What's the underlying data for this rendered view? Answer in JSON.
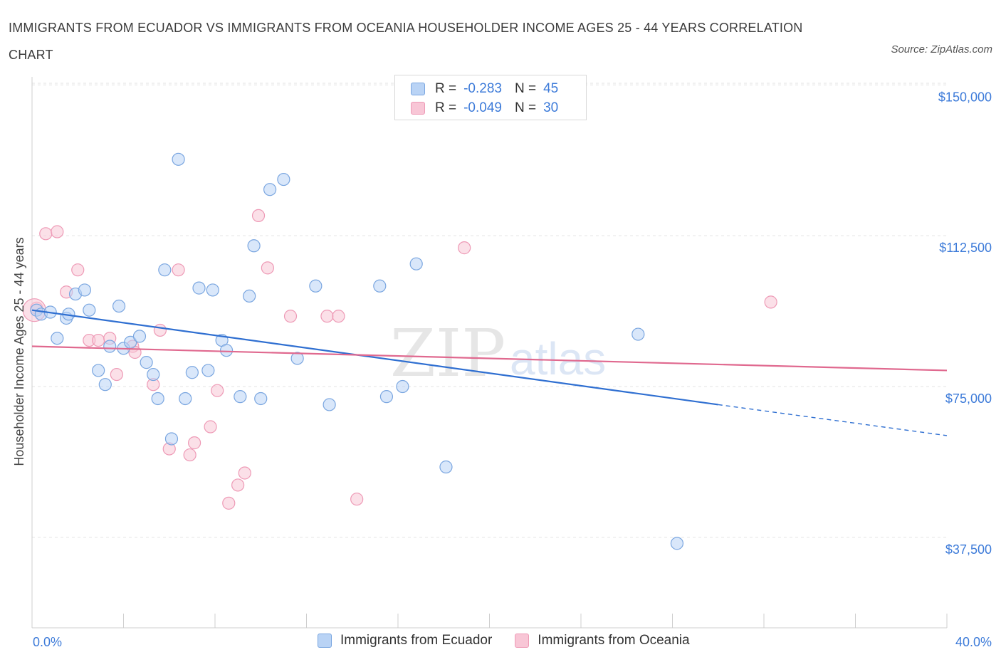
{
  "title": "IMMIGRANTS FROM ECUADOR VS IMMIGRANTS FROM OCEANIA HOUSEHOLDER INCOME AGES 25 - 44 YEARS CORRELATION CHART",
  "source": "Source: ZipAtlas.com",
  "watermark": {
    "zip": "ZIP",
    "atlas": "atlas"
  },
  "legend": {
    "ecuador": {
      "r_label": "R =",
      "r_value": "-0.283",
      "n_label": "N =",
      "n_value": "45"
    },
    "oceania": {
      "r_label": "R =",
      "r_value": "-0.049",
      "n_label": "N =",
      "n_value": "30"
    }
  },
  "bottom_legend": {
    "ecuador": "Immigrants from Ecuador",
    "oceania": "Immigrants from Oceania"
  },
  "colors": {
    "ecuador_fill": "#b9d3f5",
    "ecuador_stroke": "#7aa6e0",
    "ecuador_line": "#2f6fd1",
    "oceania_fill": "#f8c6d6",
    "oceania_stroke": "#ee9ab6",
    "oceania_line": "#e0698f",
    "accent_text": "#3d7bd9",
    "grid": "#e3e3e3"
  },
  "chart_data": {
    "type": "scatter",
    "title": "IMMIGRANTS FROM ECUADOR VS IMMIGRANTS FROM OCEANIA HOUSEHOLDER INCOME AGES 25 - 44 YEARS CORRELATION CHART",
    "xlabel": "",
    "ylabel": "Householder Income Ages 25 - 44 years",
    "xlim": [
      0,
      40
    ],
    "ylim": [
      15000,
      152000
    ],
    "x_tick_labels": [
      "0.0%",
      "40.0%"
    ],
    "y_ticks": [
      37500,
      75000,
      112500,
      150000
    ],
    "y_tick_labels": [
      "$37,500",
      "$75,000",
      "$112,500",
      "$150,000"
    ],
    "grid": true,
    "legend_position": "top-center",
    "series": [
      {
        "name": "Immigrants from Ecuador",
        "points": [
          [
            0.2,
            94000
          ],
          [
            0.4,
            93000
          ],
          [
            0.8,
            93500
          ],
          [
            1.1,
            87000
          ],
          [
            1.5,
            92000
          ],
          [
            1.6,
            93000
          ],
          [
            1.9,
            98000
          ],
          [
            2.3,
            99000
          ],
          [
            2.5,
            94000
          ],
          [
            2.9,
            79000
          ],
          [
            3.2,
            75500
          ],
          [
            3.4,
            85000
          ],
          [
            3.8,
            95000
          ],
          [
            4.0,
            84500
          ],
          [
            4.3,
            86000
          ],
          [
            4.7,
            87500
          ],
          [
            5.0,
            81000
          ],
          [
            5.3,
            78000
          ],
          [
            5.5,
            72000
          ],
          [
            5.8,
            104000
          ],
          [
            6.1,
            62000
          ],
          [
            6.4,
            131500
          ],
          [
            6.7,
            72000
          ],
          [
            7.0,
            78500
          ],
          [
            7.3,
            99500
          ],
          [
            7.7,
            79000
          ],
          [
            7.9,
            99000
          ],
          [
            8.3,
            86500
          ],
          [
            8.5,
            84000
          ],
          [
            9.1,
            72500
          ],
          [
            9.5,
            97500
          ],
          [
            9.7,
            110000
          ],
          [
            10.0,
            72000
          ],
          [
            10.4,
            124000
          ],
          [
            11.0,
            126500
          ],
          [
            11.6,
            82000
          ],
          [
            12.4,
            100000
          ],
          [
            13.0,
            70500
          ],
          [
            15.2,
            100000
          ],
          [
            15.5,
            72500
          ],
          [
            16.2,
            75000
          ],
          [
            16.8,
            105500
          ],
          [
            18.1,
            55000
          ],
          [
            26.5,
            88000
          ],
          [
            28.2,
            36000
          ]
        ]
      },
      {
        "name": "Immigrants from Oceania",
        "points": [
          [
            0.2,
            94500
          ],
          [
            0.6,
            113000
          ],
          [
            1.1,
            113500
          ],
          [
            1.5,
            98500
          ],
          [
            2.0,
            104000
          ],
          [
            2.5,
            86500
          ],
          [
            2.9,
            86500
          ],
          [
            3.4,
            87000
          ],
          [
            3.7,
            78000
          ],
          [
            4.4,
            85000
          ],
          [
            4.5,
            83500
          ],
          [
            5.3,
            75500
          ],
          [
            5.6,
            89000
          ],
          [
            6.0,
            59500
          ],
          [
            6.4,
            104000
          ],
          [
            6.9,
            58000
          ],
          [
            7.1,
            61000
          ],
          [
            7.8,
            65000
          ],
          [
            8.1,
            74000
          ],
          [
            8.6,
            46000
          ],
          [
            9.0,
            50500
          ],
          [
            9.3,
            53500
          ],
          [
            9.9,
            117500
          ],
          [
            10.3,
            104500
          ],
          [
            11.3,
            92500
          ],
          [
            12.9,
            92500
          ],
          [
            13.4,
            92500
          ],
          [
            14.2,
            47000
          ],
          [
            18.9,
            109500
          ],
          [
            32.3,
            96000
          ]
        ]
      }
    ],
    "trend_lines": [
      {
        "name": "Immigrants from Ecuador",
        "x0": 0,
        "y0": 94000,
        "x1": 30,
        "y1": 70500,
        "dashed_to_x": 40,
        "dashed_to_y": 62800
      },
      {
        "name": "Immigrants from Oceania",
        "x0": 0,
        "y0": 85000,
        "x1": 40,
        "y1": 79000
      }
    ]
  }
}
